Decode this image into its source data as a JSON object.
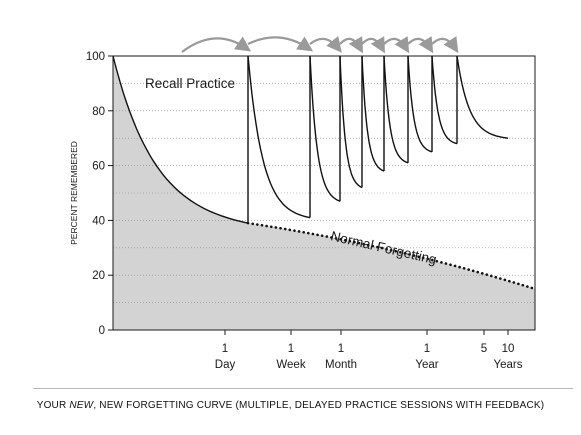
{
  "caption": {
    "prefix": "YOUR ",
    "emphasis": "NEW",
    "suffix": ", NEW FORGETTING CURVE (MULTIPLE, DELAYED PRACTICE SESSIONS WITH FEEDBACK)"
  },
  "colors": {
    "shaded_area": "#d3d3d3",
    "curve": "#111111",
    "recall_arrow": "#9a9a9a",
    "grid": "#8a8a8a"
  },
  "chart_data": {
    "type": "line",
    "title": "",
    "xlabel": "",
    "ylabel": "PERCENT REMEMBERED",
    "ylim": [
      0,
      100
    ],
    "y_ticks": [
      0,
      20,
      40,
      60,
      80,
      100
    ],
    "x_scale": "elapsed time (log-like, unlabeled origin)",
    "x_tick_labels": [
      {
        "line1": "1",
        "line2": "Day"
      },
      {
        "line1": "1",
        "line2": "Week"
      },
      {
        "line1": "1",
        "line2": "Month"
      },
      {
        "line1": "1",
        "line2": "Year"
      },
      {
        "line1": "5",
        "line2": ""
      },
      {
        "line1": "10",
        "line2": "Years"
      }
    ],
    "grid": "horizontal dotted at 10-unit steps",
    "annotations": [
      {
        "text": "Recall Practice"
      },
      {
        "text": "Normal Forgetting"
      }
    ],
    "series": [
      {
        "name": "Normal Forgetting",
        "style": "dotted",
        "points": [
          [
            "start",
            100
          ],
          [
            "1 Day",
            39
          ],
          [
            "1 Week",
            34
          ],
          [
            "1 Month",
            30
          ],
          [
            "1 Year",
            22
          ],
          [
            "10 Years",
            16
          ],
          [
            "end",
            15
          ]
        ]
      },
      {
        "name": "Recall Practice",
        "style": "solid",
        "sessions": [
          {
            "at": "after 1 Day",
            "from": 100,
            "to": 41
          },
          {
            "at": "before 1 Month",
            "from": 100,
            "to": 47
          },
          {
            "at": "after 1 Month",
            "from": 100,
            "to": 52
          },
          {
            "at": "session 4",
            "from": 100,
            "to": 58
          },
          {
            "at": "session 5",
            "from": 100,
            "to": 61
          },
          {
            "at": "after 1 Year",
            "from": 100,
            "to": 65
          },
          {
            "at": "session 7",
            "from": 100,
            "to": 68
          },
          {
            "at": "last session",
            "from": 100,
            "to": 70
          }
        ]
      }
    ]
  }
}
